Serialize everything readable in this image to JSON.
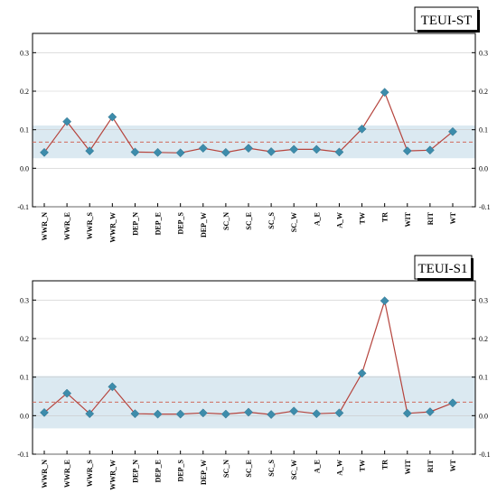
{
  "chart_data": [
    {
      "type": "line",
      "title": "TEUI-ST",
      "categories": [
        "WWR_N",
        "WWR_E",
        "WWR_S",
        "WWR_W",
        "DEP_N",
        "DEP_E",
        "DEP_S",
        "DEP_W",
        "SC_N",
        "SC_E",
        "SC_S",
        "SC_W",
        "A_E",
        "A_W",
        "TW",
        "TR",
        "WIT",
        "RIT",
        "WT"
      ],
      "values": [
        0.041,
        0.121,
        0.045,
        0.133,
        0.042,
        0.041,
        0.04,
        0.052,
        0.041,
        0.052,
        0.043,
        0.049,
        0.049,
        0.042,
        0.102,
        0.197,
        0.045,
        0.047,
        0.095
      ],
      "yticks": [
        "-0.1",
        "0.0",
        "0.1",
        "0.2",
        "0.3"
      ],
      "ylim": [
        -0.1,
        0.35
      ],
      "mean": 0.068,
      "band": [
        0.026,
        0.111
      ],
      "grid": true,
      "colors": {
        "line": "#b5433c",
        "marker": "#3d8cab",
        "band": "#dbe9f1",
        "mean": "#d06a5c"
      }
    },
    {
      "type": "line",
      "title": "TEUI-S1",
      "categories": [
        "WWR_N",
        "WWR_E",
        "WWR_S",
        "WWR_W",
        "DEP_N",
        "DEP_E",
        "DEP_S",
        "DEP_W",
        "SC_N",
        "SC_E",
        "SC_S",
        "SC_W",
        "A_E",
        "A_W",
        "TW",
        "TR",
        "WIT",
        "RIT",
        "WT"
      ],
      "values": [
        0.008,
        0.058,
        0.005,
        0.075,
        0.005,
        0.004,
        0.004,
        0.007,
        0.004,
        0.009,
        0.003,
        0.012,
        0.005,
        0.007,
        0.11,
        0.298,
        0.006,
        0.01,
        0.033
      ],
      "yticks": [
        "-0.1",
        "0.0",
        "0.1",
        "0.2",
        "0.3"
      ],
      "ylim": [
        -0.1,
        0.35
      ],
      "mean": 0.035,
      "band": [
        -0.033,
        0.103
      ],
      "grid": true,
      "colors": {
        "line": "#b5433c",
        "marker": "#3d8cab",
        "band": "#dbe9f1",
        "mean": "#d06a5c"
      }
    }
  ]
}
